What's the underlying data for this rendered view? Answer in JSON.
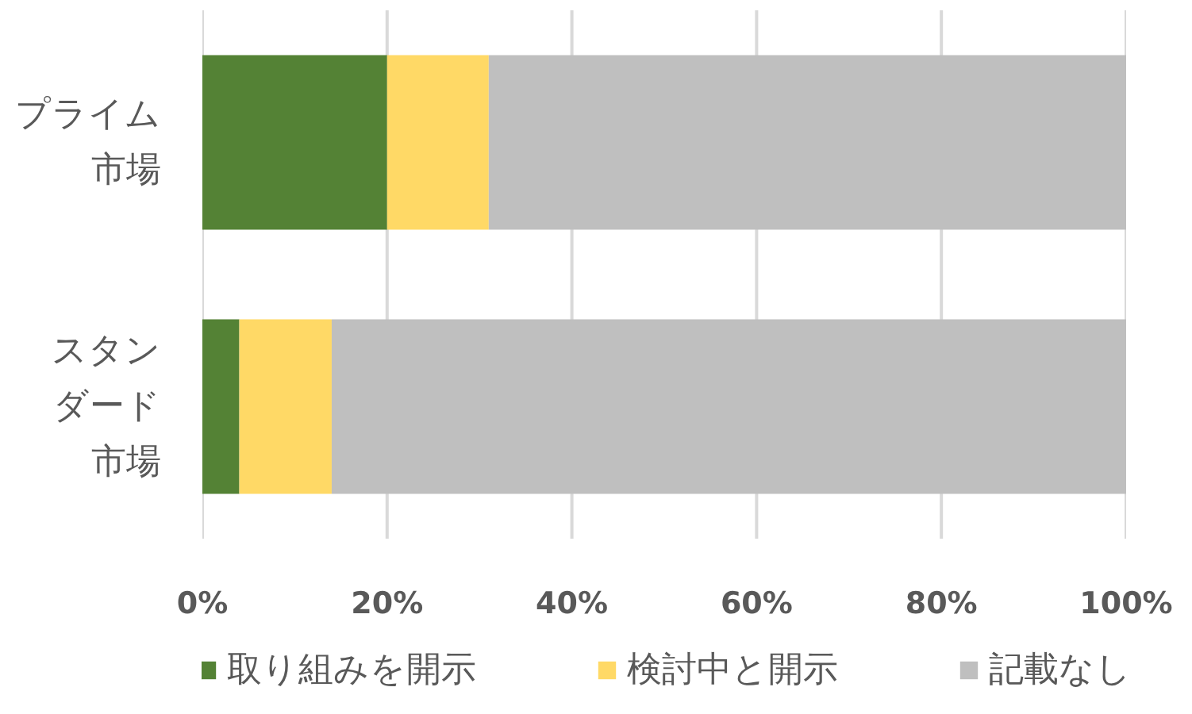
{
  "chart_data": {
    "type": "bar",
    "orientation": "horizontal",
    "stacked": true,
    "categories": [
      "プライム市場",
      "スタンダード市場"
    ],
    "series": [
      {
        "name": "取り組みを開示",
        "color": "#548235",
        "values": [
          20,
          4
        ]
      },
      {
        "name": "検討中と開示",
        "color": "#ffd966",
        "values": [
          11,
          10
        ]
      },
      {
        "name": "記載なし",
        "color": "#bfbfbf",
        "values": [
          69,
          86
        ]
      }
    ],
    "xlim": [
      0,
      100
    ],
    "xticks": [
      {
        "value": 0,
        "label": "0%"
      },
      {
        "value": 20,
        "label": "20%"
      },
      {
        "value": 40,
        "label": "40%"
      },
      {
        "value": 60,
        "label": "60%"
      },
      {
        "value": 80,
        "label": "80%"
      },
      {
        "value": 100,
        "label": "100%"
      }
    ],
    "grid": "x",
    "legend": "bottom"
  }
}
